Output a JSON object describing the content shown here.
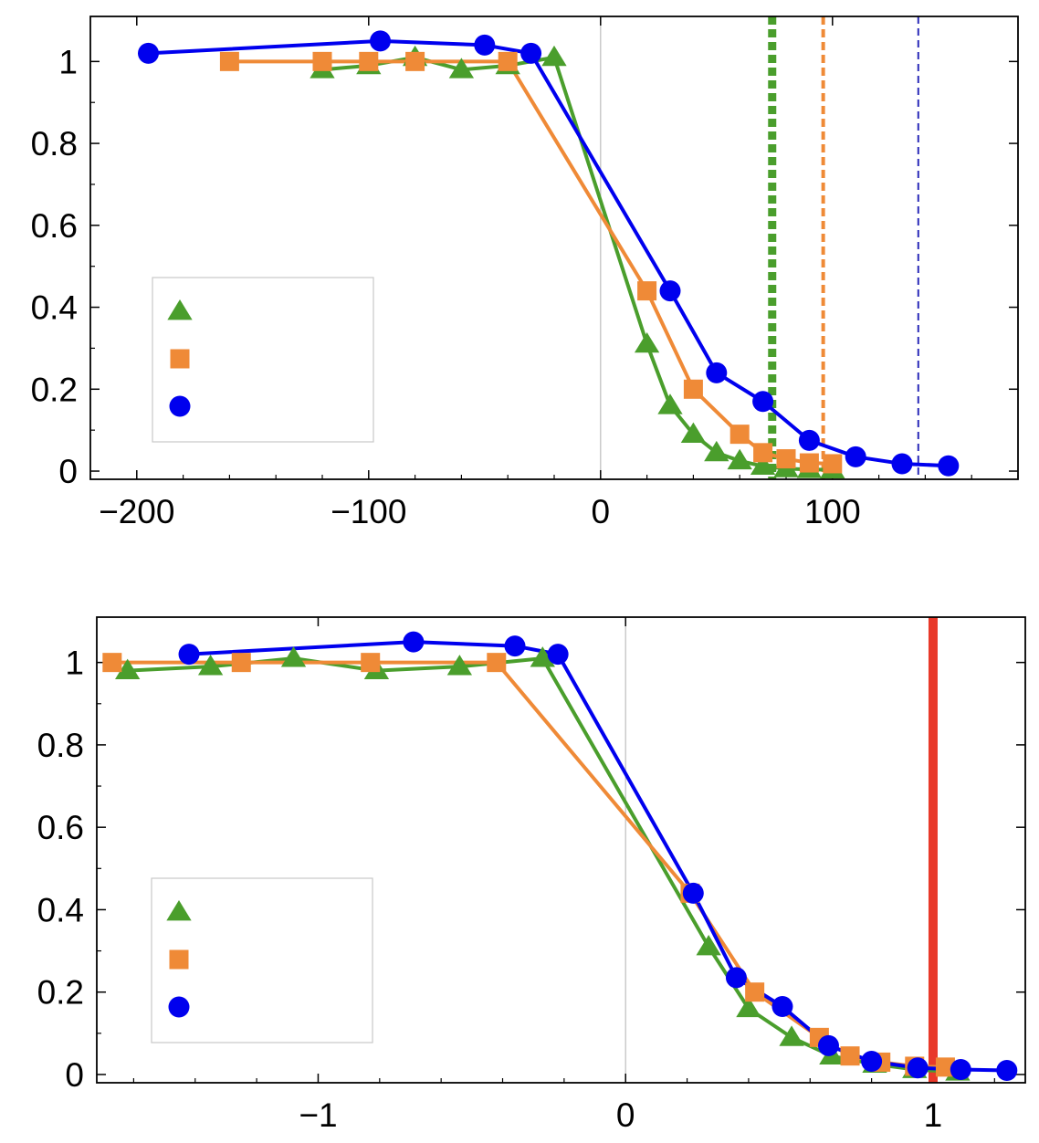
{
  "chart_data": [
    {
      "type": "line",
      "title": "",
      "xlabel": "",
      "ylabel": "",
      "xlim": [
        -220,
        180
      ],
      "ylim": [
        -0.02,
        1.11
      ],
      "xticks": [
        -200,
        -100,
        0,
        100
      ],
      "xtick_labels": [
        "−200",
        "−100",
        "0",
        "100"
      ],
      "yticks": [
        0,
        0.2,
        0.4,
        0.6,
        0.8,
        1
      ],
      "ytick_labels": [
        "0",
        "0.2",
        "0.4",
        "0.6",
        "0.8",
        "1"
      ],
      "zero_line_x": 0,
      "legend": {
        "position": "lower-left",
        "entries": [
          "",
          "",
          ""
        ]
      },
      "series": [
        {
          "name": "green triangles",
          "color": "#4a9e2c",
          "marker": "triangle",
          "x": [
            -120,
            -100,
            -80,
            -60,
            -40,
            -20,
            20,
            30,
            40,
            50,
            60,
            70,
            80,
            90,
            100
          ],
          "y": [
            0.98,
            0.99,
            1.01,
            0.98,
            0.99,
            1.01,
            0.31,
            0.16,
            0.09,
            0.045,
            0.025,
            0.012,
            0.006,
            0.004,
            0.003
          ]
        },
        {
          "name": "orange squares",
          "color": "#ef8a37",
          "marker": "square",
          "x": [
            -160,
            -120,
            -100,
            -80,
            -40,
            20,
            40,
            60,
            70,
            80,
            90,
            100
          ],
          "y": [
            1.0,
            1.0,
            1.0,
            1.0,
            1.0,
            0.44,
            0.2,
            0.09,
            0.045,
            0.03,
            0.02,
            0.018
          ]
        },
        {
          "name": "blue circles",
          "color": "#0000ee",
          "marker": "circle",
          "x": [
            -195,
            -95,
            -50,
            -30,
            30,
            50,
            70,
            90,
            110,
            130,
            150
          ],
          "y": [
            1.02,
            1.05,
            1.04,
            1.02,
            0.44,
            0.24,
            0.17,
            0.075,
            0.035,
            0.018,
            0.013
          ]
        }
      ],
      "vlines": [
        {
          "x": 74,
          "color": "#4a9e2c",
          "style": "dotted-thick"
        },
        {
          "x": 96,
          "color": "#ef8a37",
          "style": "dashed"
        },
        {
          "x": 137,
          "color": "#2a2ab8",
          "style": "dashed-thin"
        }
      ]
    },
    {
      "type": "line",
      "title": "",
      "xlabel": "",
      "ylabel": "",
      "xlim": [
        -1.72,
        1.3
      ],
      "ylim": [
        -0.02,
        1.11
      ],
      "xticks": [
        -1,
        0,
        1
      ],
      "xtick_labels": [
        "−1",
        "0",
        "1"
      ],
      "yticks": [
        0,
        0.2,
        0.4,
        0.6,
        0.8,
        1
      ],
      "ytick_labels": [
        "0",
        "0.2",
        "0.4",
        "0.6",
        "0.8",
        "1"
      ],
      "zero_line_x": 0,
      "legend": {
        "position": "lower-left",
        "entries": [
          "",
          "",
          ""
        ]
      },
      "series": [
        {
          "name": "green triangles",
          "color": "#4a9e2c",
          "marker": "triangle",
          "x": [
            -1.62,
            -1.35,
            -1.08,
            -0.81,
            -0.54,
            -0.27,
            0.27,
            0.4,
            0.54,
            0.67,
            0.81,
            0.94,
            1.08
          ],
          "y": [
            0.98,
            0.99,
            1.01,
            0.98,
            0.99,
            1.01,
            0.31,
            0.16,
            0.09,
            0.045,
            0.025,
            0.012,
            0.006
          ]
        },
        {
          "name": "orange squares",
          "color": "#ef8a37",
          "marker": "square",
          "x": [
            -1.67,
            -1.25,
            -0.83,
            -0.42,
            0.21,
            0.42,
            0.63,
            0.73,
            0.83,
            0.94,
            1.04
          ],
          "y": [
            1.0,
            1.0,
            1.0,
            1.0,
            0.44,
            0.2,
            0.09,
            0.045,
            0.03,
            0.02,
            0.018
          ]
        },
        {
          "name": "blue circles",
          "color": "#0000ee",
          "marker": "circle",
          "x": [
            -1.42,
            -0.69,
            -0.36,
            -0.22,
            0.22,
            0.36,
            0.51,
            0.66,
            0.8,
            0.95,
            1.09,
            1.24
          ],
          "y": [
            1.02,
            1.05,
            1.04,
            1.02,
            0.44,
            0.235,
            0.165,
            0.07,
            0.032,
            0.016,
            0.012,
            0.01
          ]
        }
      ],
      "vlines": [
        {
          "x": 1.0,
          "color": "#e8392a",
          "style": "solid-thick"
        }
      ]
    }
  ]
}
